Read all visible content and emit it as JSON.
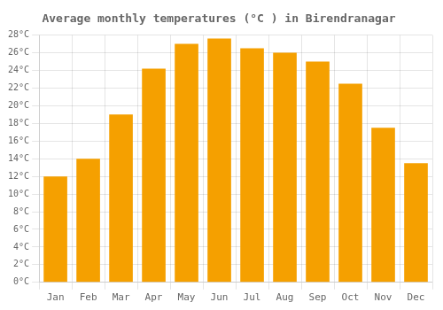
{
  "chart_data": {
    "type": "bar",
    "title": "Average monthly temperatures (°C ) in Birendranagar",
    "categories": [
      "Jan",
      "Feb",
      "Mar",
      "Apr",
      "May",
      "Jun",
      "Jul",
      "Aug",
      "Sep",
      "Oct",
      "Nov",
      "Dec"
    ],
    "values": [
      12.0,
      14.0,
      19.0,
      24.2,
      27.0,
      27.6,
      26.5,
      26.0,
      25.0,
      22.5,
      17.5,
      13.5
    ],
    "color": "#F5A000",
    "ylim": [
      0,
      28
    ],
    "yticks": [
      {
        "value": 0,
        "label": "0°C"
      },
      {
        "value": 2,
        "label": "2°C"
      },
      {
        "value": 4,
        "label": "4°C"
      },
      {
        "value": 6,
        "label": "6°C"
      },
      {
        "value": 8,
        "label": "8°C"
      },
      {
        "value": 10,
        "label": "10°C"
      },
      {
        "value": 12,
        "label": "12°C"
      },
      {
        "value": 14,
        "label": "14°C"
      },
      {
        "value": 16,
        "label": "16°C"
      },
      {
        "value": 18,
        "label": "18°C"
      },
      {
        "value": 20,
        "label": "20°C"
      },
      {
        "value": 22,
        "label": "22°C"
      },
      {
        "value": 24,
        "label": "24°C"
      },
      {
        "value": 26,
        "label": "26°C"
      },
      {
        "value": 28,
        "label": "28°C"
      }
    ],
    "grid": true
  }
}
